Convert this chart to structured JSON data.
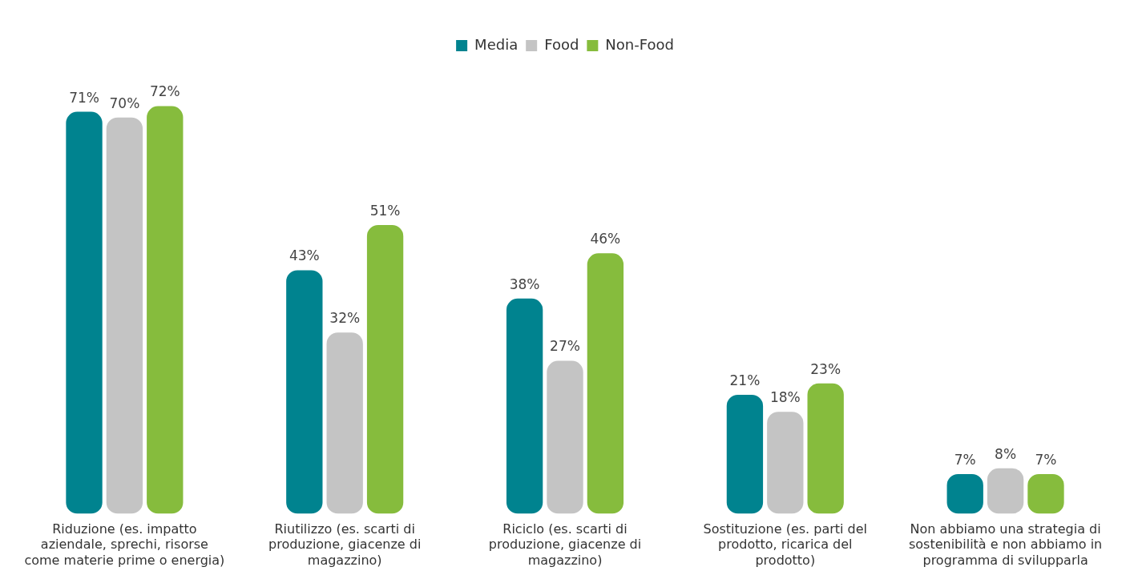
{
  "chart_data": {
    "type": "bar",
    "categories": [
      "Riduzione (es. impatto aziendale, sprechi, risorse come materie prime o energia)",
      "Riutilizzo (es. scarti di produzione, giacenze di magazzino)",
      "Riciclo (es. scarti di produzione, giacenze di magazzino)",
      "Sostituzione (es. parti del prodotto, ricarica del prodotto)",
      "Non abbiamo una strategia di sostenibilità e non abbiamo in programma di svilupparla"
    ],
    "series": [
      {
        "name": "Media",
        "color": "#00838f",
        "values": [
          71,
          43,
          38,
          21,
          7
        ],
        "value_labels": [
          "71%",
          "43%",
          "38%",
          "21%",
          "7%"
        ]
      },
      {
        "name": "Food",
        "color": "#c4c4c4",
        "values": [
          70,
          32,
          27,
          18,
          8
        ],
        "value_labels": [
          "70%",
          "32%",
          "27%",
          "18%",
          "8%"
        ]
      },
      {
        "name": "Non-Food",
        "color": "#86bc3d",
        "values": [
          72,
          51,
          46,
          23,
          7
        ],
        "value_labels": [
          "72%",
          "51%",
          "46%",
          "23%",
          "7%"
        ]
      }
    ],
    "legend": "top",
    "grid": false
  }
}
